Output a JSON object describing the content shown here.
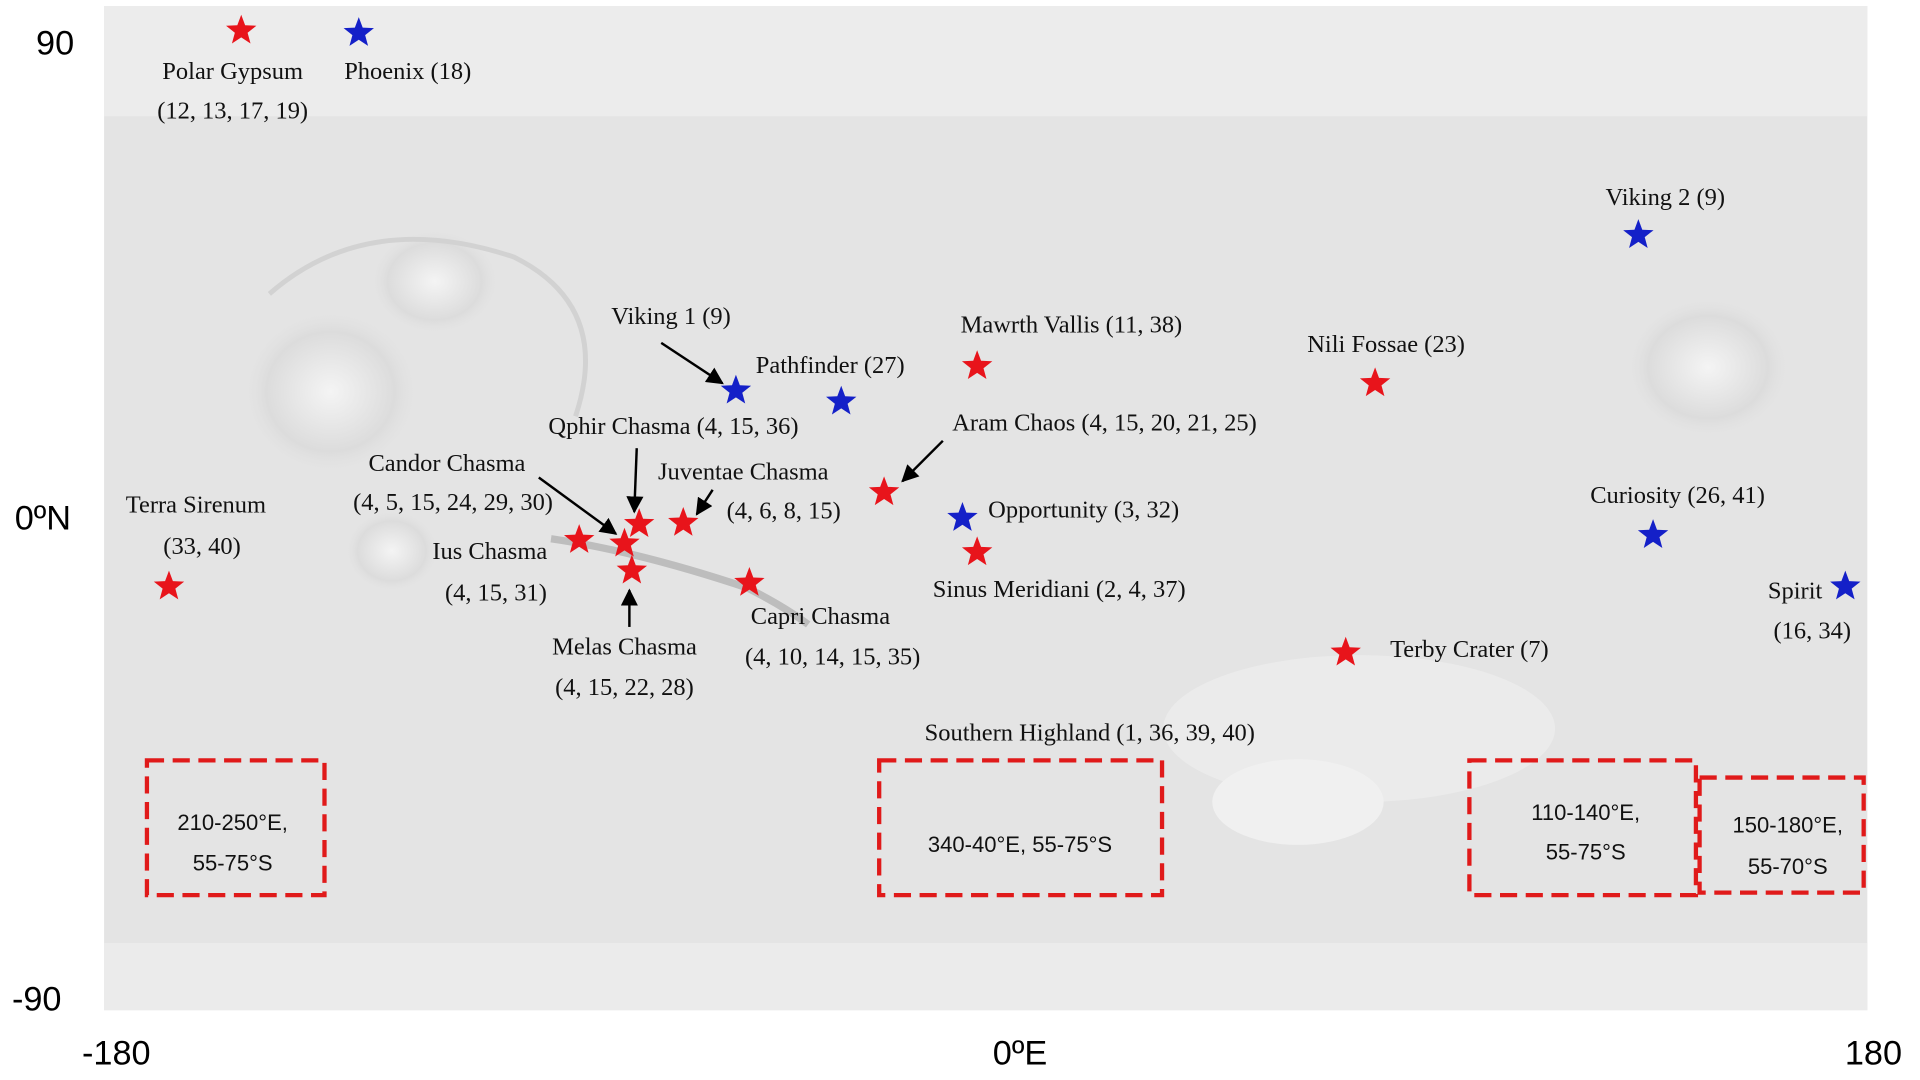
{
  "axes": {
    "y_top": "90",
    "y_mid": "0ºN",
    "y_bottom": "-90",
    "x_left": "-180",
    "x_mid": "0ºE",
    "x_right": "180"
  },
  "sites": [
    {
      "lines": [
        "Polar Gypsum",
        "(12, 13, 17, 19)"
      ],
      "color": "#e8141b"
    },
    {
      "lines": [
        "Phoenix (18)"
      ],
      "color": "#1420c8"
    },
    {
      "lines": [
        "Viking 2 (9)"
      ],
      "color": "#1420c8"
    },
    {
      "lines": [
        "Viking 1 (9)"
      ],
      "color": "#1420c8"
    },
    {
      "lines": [
        "Pathfinder (27)"
      ],
      "color": "#1420c8"
    },
    {
      "lines": [
        "Mawrth Vallis (11, 38)"
      ],
      "color": "#e8141b"
    },
    {
      "lines": [
        "Nili Fossae (23)"
      ],
      "color": "#e8141b"
    },
    {
      "lines": [
        "Aram Chaos (4, 15, 20, 21, 25)"
      ],
      "color": "#e8141b"
    },
    {
      "lines": [
        "Qphir Chasma (4, 15, 36)"
      ],
      "color": "#e8141b"
    },
    {
      "lines": [
        "Candor Chasma",
        "(4, 5, 15, 24, 29, 30)"
      ],
      "color": "#e8141b"
    },
    {
      "lines": [
        "Juventae Chasma",
        "(4, 6, 8, 15)"
      ],
      "color": "#e8141b"
    },
    {
      "lines": [
        "Opportunity (3, 32)"
      ],
      "color": "#1420c8"
    },
    {
      "lines": [
        "Sinus Meridiani (2, 4, 37)"
      ],
      "color": "#e8141b"
    },
    {
      "lines": [
        "Terra Sirenum",
        "(33, 40)"
      ],
      "color": "#e8141b"
    },
    {
      "lines": [
        "Ius Chasma",
        "(4, 15, 31)"
      ],
      "color": "#e8141b"
    },
    {
      "lines": [
        "Melas Chasma",
        "(4, 15, 22, 28)"
      ],
      "color": "#e8141b"
    },
    {
      "lines": [
        "Capri Chasma",
        "(4, 10, 14, 15, 35)"
      ],
      "color": "#e8141b"
    },
    {
      "lines": [
        "Curiosity (26, 41)"
      ],
      "color": "#1420c8"
    },
    {
      "lines": [
        "Spirit",
        "(16, 34)"
      ],
      "color": "#1420c8"
    },
    {
      "lines": [
        "Terby Crater (7)"
      ],
      "color": "#e8141b"
    },
    {
      "lines": [
        "Southern Highland (1, 36, 39, 40)"
      ]
    }
  ],
  "regions": [
    {
      "lines": [
        "210-250°E,",
        "55-75°S"
      ]
    },
    {
      "lines": [
        "340-40°E, 55-75°S"
      ]
    },
    {
      "lines": [
        "110-140°E,",
        "55-75°S"
      ]
    },
    {
      "lines": [
        "150-180°E,",
        "55-70°S"
      ]
    }
  ]
}
